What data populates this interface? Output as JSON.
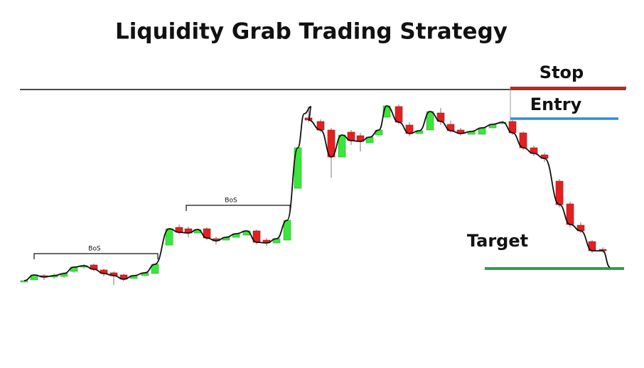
{
  "title": "Liquidity Grab Trading Strategy",
  "annotations": {
    "bos_1": "BoS",
    "bos_2": "BoS",
    "stop": "Stop",
    "entry": "Entry",
    "target": "Target"
  }
}
